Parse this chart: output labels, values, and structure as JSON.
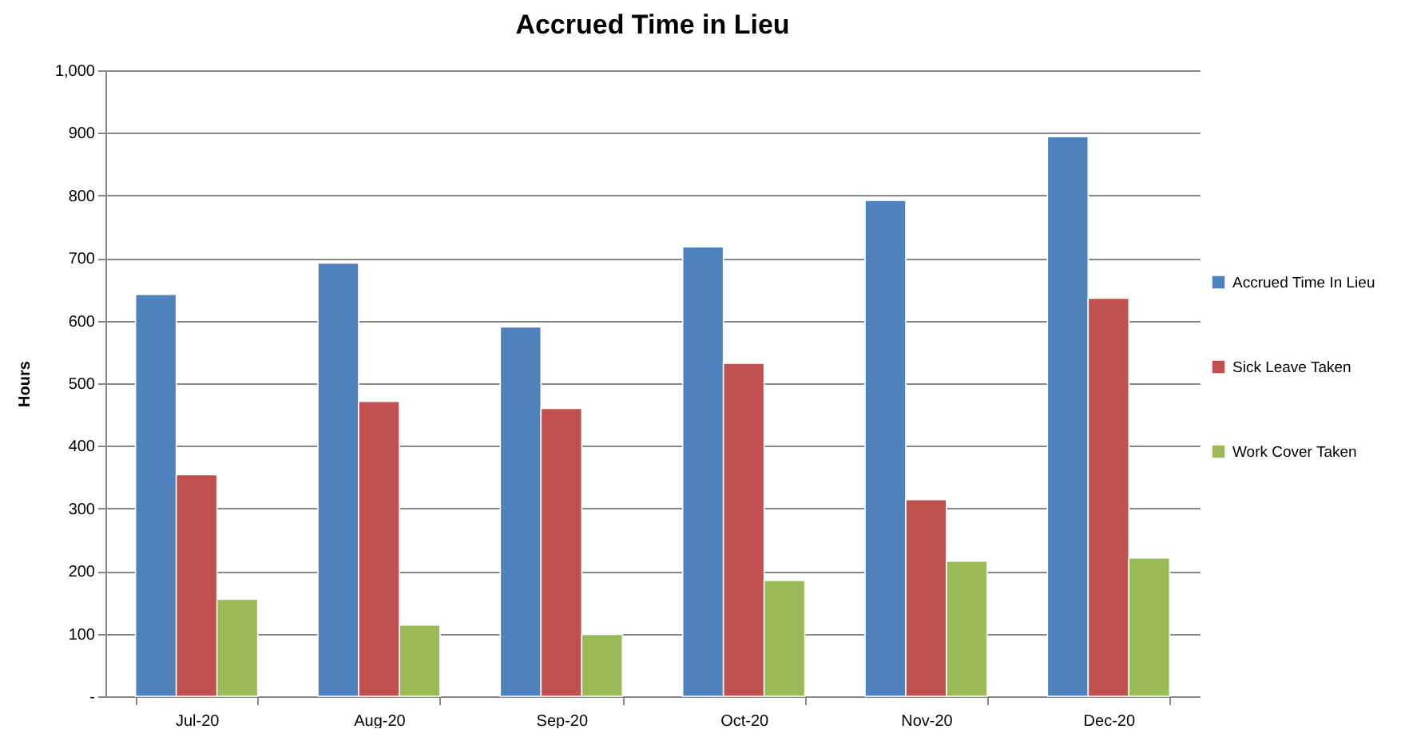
{
  "chart_data": {
    "type": "bar",
    "title": "Accrued Time in Lieu",
    "ylabel": "Hours",
    "categories": [
      "Jul-20",
      "Aug-20",
      "Sep-20",
      "Oct-20",
      "Nov-20",
      "Dec-20"
    ],
    "series": [
      {
        "name": "Accrued Time In Lieu",
        "color": "#4f81bd",
        "values": [
          642,
          692,
          590,
          718,
          792,
          894
        ]
      },
      {
        "name": "Sick Leave Taken",
        "color": "#c0504d",
        "values": [
          354,
          471,
          460,
          532,
          314,
          636
        ]
      },
      {
        "name": "Work Cover Taken",
        "color": "#9bbb59",
        "values": [
          155,
          114,
          99,
          185,
          216,
          221
        ]
      }
    ],
    "ylim": [
      0,
      1000
    ],
    "yticks": [
      {
        "value": 0,
        "label": "-"
      },
      100,
      200,
      300,
      400,
      500,
      600,
      700,
      800,
      900,
      {
        "value": 1000,
        "label": "1,000"
      }
    ],
    "grid": "y",
    "legend": "right"
  }
}
